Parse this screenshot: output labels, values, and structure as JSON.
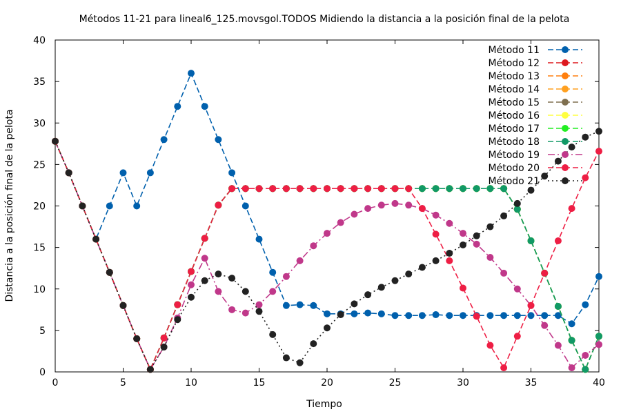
{
  "chart_data": {
    "type": "line",
    "title": "Métodos 11-21 para lineal6_125.movsgol.TODOS Midiendo la distancia a la posición final de la pelota",
    "xlabel": "Tiempo",
    "ylabel": "Distancia a la posición final de la pelota",
    "xlim": [
      0,
      40
    ],
    "ylim": [
      0,
      40
    ],
    "xticks": [
      "0",
      "5",
      "10",
      "15",
      "20",
      "25",
      "30",
      "35",
      "40"
    ],
    "yticks": [
      "0",
      "5",
      "10",
      "15",
      "20",
      "25",
      "30",
      "35",
      "40"
    ],
    "grid": false,
    "legend_position": "top-right",
    "x": [
      0,
      1,
      2,
      3,
      4,
      5,
      6,
      7,
      8,
      9,
      10,
      11,
      12,
      13,
      14,
      15,
      16,
      17,
      18,
      19,
      20,
      21,
      22,
      23,
      24,
      25,
      26,
      27,
      28,
      29,
      30,
      31,
      32,
      33,
      34,
      35,
      36,
      37,
      38,
      39,
      40
    ],
    "series": [
      {
        "name": "Método 11",
        "color": "#0060ad",
        "dash": "8,4",
        "values": [
          27.8,
          24,
          20,
          16,
          20,
          24,
          20,
          24,
          28,
          32,
          36,
          32,
          28,
          24,
          20,
          16,
          12,
          8,
          8.1,
          8,
          7,
          7,
          7,
          7.1,
          7,
          6.8,
          6.8,
          6.8,
          6.9,
          6.8,
          6.8,
          6.8,
          6.8,
          6.8,
          6.8,
          6.8,
          6.8,
          6.8,
          5.8,
          8.1,
          11.5
        ]
      },
      {
        "name": "Método 12",
        "color": "#dd181f",
        "dash": "8,4",
        "values": [
          27.8,
          24,
          20,
          16,
          12,
          8,
          4,
          0.3,
          4.1,
          8.1,
          12.1,
          16.1,
          20.1,
          22.1,
          22.1,
          22.1,
          22.1,
          22.1,
          22.1,
          22.1,
          22.1,
          22.1,
          22.1,
          22.1,
          22.1,
          22.1,
          22.1,
          22.1,
          22.1,
          22.1,
          22.1,
          22.1,
          22.1,
          22.1,
          19.6,
          15.8,
          11.9,
          7.9,
          3.8,
          0.3,
          4.3
        ]
      },
      {
        "name": "Método 13",
        "color": "#ff7f0e",
        "dash": "8,4",
        "values": [
          27.8,
          24,
          20,
          16,
          12,
          8,
          4,
          0.3,
          4.1,
          8.1,
          12.1,
          16.1,
          20.1,
          22.1,
          22.1,
          22.1,
          22.1,
          22.1,
          22.1,
          22.1,
          22.1,
          22.1,
          22.1,
          22.1,
          22.1,
          22.1,
          22.1,
          22.1,
          22.1,
          22.1,
          22.1,
          22.1,
          22.1,
          22.1,
          19.6,
          15.8,
          11.9,
          7.9,
          3.8,
          0.3,
          4.3
        ]
      },
      {
        "name": "Método 14",
        "color": "#ffa020",
        "dash": "8,4",
        "values": [
          27.8,
          24,
          20,
          16,
          12,
          8,
          4,
          0.3,
          4.1,
          8.1,
          12.1,
          16.1,
          20.1,
          22.1,
          22.1,
          22.1,
          22.1,
          22.1,
          22.1,
          22.1,
          22.1,
          22.1,
          22.1,
          22.1,
          22.1,
          22.1,
          22.1,
          22.1,
          22.1,
          22.1,
          22.1,
          22.1,
          22.1,
          22.1,
          19.6,
          15.8,
          11.9,
          7.9,
          3.8,
          0.3,
          4.3
        ]
      },
      {
        "name": "Método 15",
        "color": "#7f6f4f",
        "dash": "8,4",
        "values": [
          27.8,
          24,
          20,
          16,
          12,
          8,
          4,
          0.3,
          4.1,
          8.1,
          12.1,
          16.1,
          20.1,
          22.1,
          22.1,
          22.1,
          22.1,
          22.1,
          22.1,
          22.1,
          22.1,
          22.1,
          22.1,
          22.1,
          22.1,
          22.1,
          22.1,
          22.1,
          22.1,
          22.1,
          22.1,
          22.1,
          22.1,
          22.1,
          19.6,
          15.8,
          11.9,
          7.9,
          3.8,
          0.3,
          4.3
        ]
      },
      {
        "name": "Método 16",
        "color": "#ffff40",
        "dash": "8,4",
        "values": [
          27.8,
          24,
          20,
          16,
          12,
          8,
          4,
          0.3,
          4.1,
          8.1,
          12.1,
          16.1,
          20.1,
          22.1,
          22.1,
          22.1,
          22.1,
          22.1,
          22.1,
          22.1,
          22.1,
          22.1,
          22.1,
          22.1,
          22.1,
          22.1,
          22.1,
          22.1,
          22.1,
          22.1,
          22.1,
          22.1,
          22.1,
          22.1,
          19.6,
          15.8,
          11.9,
          7.9,
          3.8,
          0.3,
          4.3
        ]
      },
      {
        "name": "Método 17",
        "color": "#22ee22",
        "dash": "8,4",
        "values": [
          27.8,
          24,
          20,
          16,
          12,
          8,
          4,
          0.3,
          4.1,
          8.1,
          12.1,
          16.1,
          20.1,
          22.1,
          22.1,
          22.1,
          22.1,
          22.1,
          22.1,
          22.1,
          22.1,
          22.1,
          22.1,
          22.1,
          22.1,
          22.1,
          22.1,
          22.1,
          22.1,
          22.1,
          22.1,
          22.1,
          22.1,
          22.1,
          19.6,
          15.8,
          11.9,
          7.9,
          3.8,
          0.3,
          4.3
        ]
      },
      {
        "name": "Método 18",
        "color": "#119966",
        "dash": "8,4",
        "values": [
          27.8,
          24,
          20,
          16,
          12,
          8,
          4,
          0.3,
          4.1,
          8.1,
          12.1,
          16.1,
          20.1,
          22.1,
          22.1,
          22.1,
          22.1,
          22.1,
          22.1,
          22.1,
          22.1,
          22.1,
          22.1,
          22.1,
          22.1,
          22.1,
          22.1,
          22.1,
          22.1,
          22.1,
          22.1,
          22.1,
          22.1,
          22.1,
          19.6,
          15.8,
          11.9,
          7.9,
          3.8,
          0.3,
          4.3
        ]
      },
      {
        "name": "Método 19",
        "color": "#c0388a",
        "dash": "10,4,2,4",
        "values": [
          27.8,
          24,
          20,
          16,
          12,
          8,
          4,
          0.3,
          3,
          6.5,
          10.5,
          13.7,
          9.7,
          7.5,
          7.1,
          8.1,
          9.7,
          11.5,
          13.4,
          15.2,
          16.7,
          18,
          19,
          19.7,
          20.1,
          20.3,
          20.1,
          19.7,
          18.9,
          17.9,
          16.7,
          15.4,
          13.8,
          11.9,
          10,
          8,
          5.6,
          3.2,
          0.5,
          2,
          3.3
        ]
      },
      {
        "name": "Método 20",
        "color": "#ee1e44",
        "dash": "8,4",
        "values": [
          27.8,
          24,
          20,
          16,
          12,
          8,
          4,
          0.3,
          4.1,
          8.1,
          12.1,
          16.1,
          20.1,
          22.1,
          22.1,
          22.1,
          22.1,
          22.1,
          22.1,
          22.1,
          22.1,
          22.1,
          22.1,
          22.1,
          22.1,
          22.1,
          22.1,
          19.7,
          16.6,
          13.4,
          10.1,
          6.7,
          3.2,
          0.5,
          4.3,
          8,
          11.9,
          15.8,
          19.7,
          23.4,
          26.6
        ]
      },
      {
        "name": "Método 21",
        "color": "#222222",
        "dash": "2,4",
        "values": [
          27.8,
          24,
          20,
          16,
          12,
          8,
          4,
          0.3,
          3,
          6.3,
          9,
          11,
          11.8,
          11.3,
          9.7,
          7.3,
          4.5,
          1.7,
          1.1,
          3.4,
          5.3,
          6.9,
          8.2,
          9.3,
          10.2,
          11,
          11.8,
          12.6,
          13.4,
          14.3,
          15.3,
          16.4,
          17.5,
          18.8,
          20.3,
          21.9,
          23.6,
          25.4,
          27.1,
          28.3,
          29
        ]
      }
    ]
  }
}
